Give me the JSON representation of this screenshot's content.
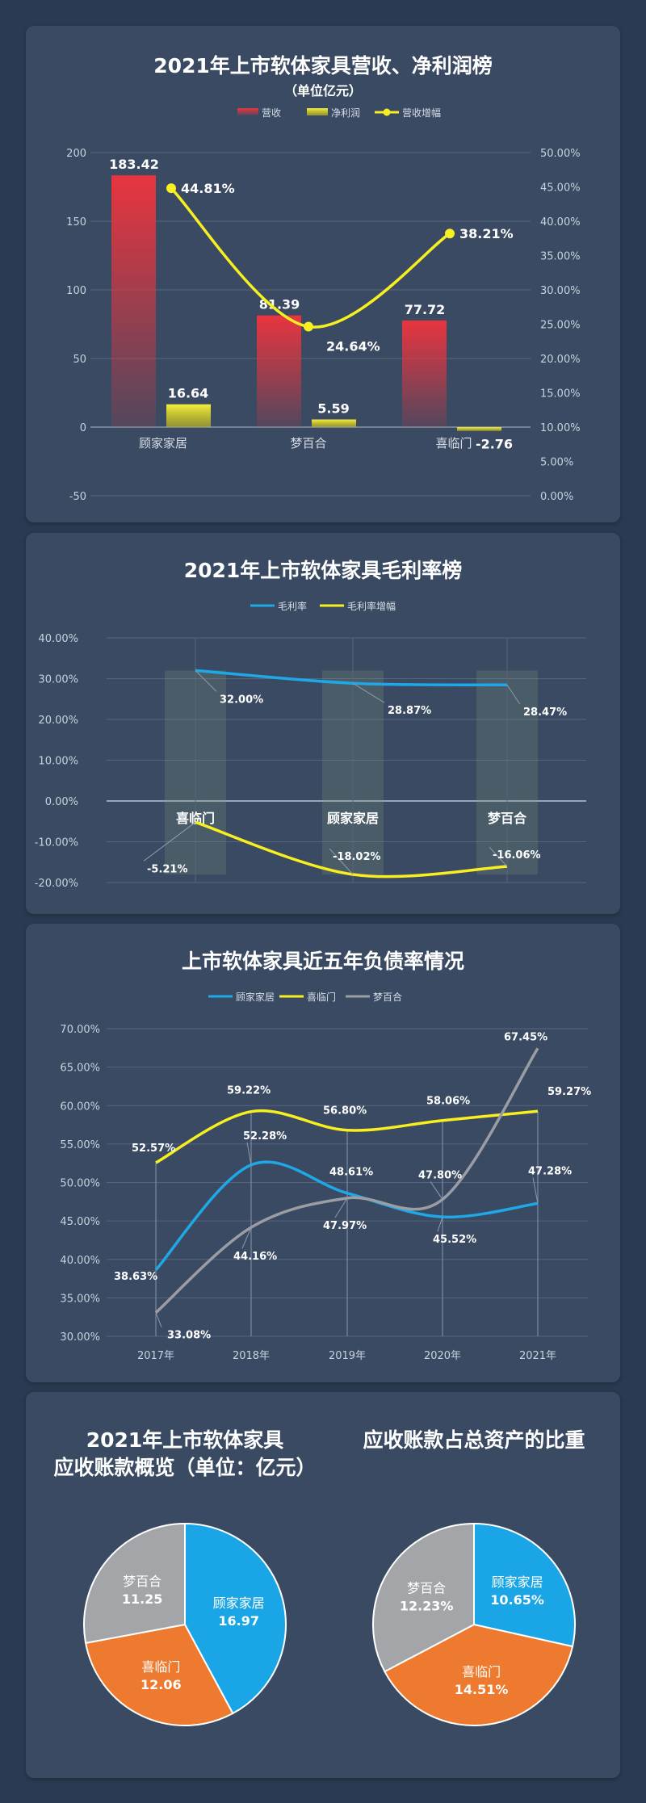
{
  "chart_data": [
    {
      "type": "bar",
      "title": "2021年上市软体家具营收、净利润榜",
      "subtitle": "（单位亿元）",
      "categories": [
        "顾家家居",
        "梦百合",
        "喜临门"
      ],
      "series": [
        {
          "name": "营收",
          "kind": "bar",
          "axis": "left",
          "values": [
            183.42,
            81.39,
            77.72
          ],
          "labels": [
            "183.42",
            "81.39",
            "77.72"
          ],
          "color": "#e8353f"
        },
        {
          "name": "净利润",
          "kind": "bar",
          "axis": "left",
          "values": [
            16.64,
            5.59,
            -2.76
          ],
          "labels": [
            "16.64",
            "5.59",
            "-2.76"
          ],
          "color": "#f3ee3a"
        },
        {
          "name": "营收增幅",
          "kind": "line",
          "axis": "right",
          "values": [
            44.81,
            24.64,
            38.21
          ],
          "labels": [
            "44.81%",
            "24.64%",
            "38.21%"
          ],
          "color": "#f7ef1f"
        }
      ],
      "ylim": [
        -50,
        200
      ],
      "yticks": [
        "200",
        "150",
        "100",
        "50",
        "0",
        "-50"
      ],
      "y2lim": [
        0,
        50
      ],
      "y2ticks": [
        "50.00%",
        "45.00%",
        "40.00%",
        "35.00%",
        "30.00%",
        "25.00%",
        "20.00%",
        "15.00%",
        "10.00%",
        "5.00%",
        "0.00%"
      ],
      "legend": "top"
    },
    {
      "type": "line",
      "title": "2021年上市软体家具毛利率榜",
      "categories": [
        "喜临门",
        "顾家家居",
        "梦百合"
      ],
      "series": [
        {
          "name": "毛利率",
          "values": [
            32.0,
            28.87,
            28.47
          ],
          "labels": [
            "32.00%",
            "28.87%",
            "28.47%"
          ],
          "color": "#1fa8e8"
        },
        {
          "name": "毛利率增幅",
          "values": [
            -5.21,
            -18.02,
            -16.06
          ],
          "labels": [
            "-5.21%",
            "-18.02%",
            "-16.06%"
          ],
          "color": "#f7ef1f"
        }
      ],
      "ylim": [
        -20,
        40
      ],
      "yticks": [
        "40.00%",
        "30.00%",
        "20.00%",
        "10.00%",
        "0.00%",
        "-10.00%",
        "-20.00%"
      ],
      "legend": "top"
    },
    {
      "type": "line",
      "title": "上市软体家具近五年负债率情况",
      "categories": [
        "2017年",
        "2018年",
        "2019年",
        "2020年",
        "2021年"
      ],
      "series": [
        {
          "name": "顾家家居",
          "values": [
            38.63,
            52.28,
            48.61,
            45.52,
            47.28
          ],
          "labels": [
            "38.63%",
            "52.28%",
            "48.61%",
            "45.52%",
            "47.28%"
          ],
          "color": "#1fa8e8"
        },
        {
          "name": "喜临门",
          "values": [
            52.57,
            59.22,
            56.8,
            58.06,
            59.27
          ],
          "labels": [
            "52.57%",
            "59.22%",
            "56.80%",
            "58.06%",
            "59.27%"
          ],
          "color": "#f7ef1f"
        },
        {
          "name": "梦百合",
          "values": [
            33.08,
            44.16,
            47.97,
            47.8,
            67.45
          ],
          "labels": [
            "33.08%",
            "44.16%",
            "47.97%",
            "47.80%",
            "67.45%"
          ],
          "color": "#9a9da3"
        }
      ],
      "ylim": [
        30,
        70
      ],
      "yticks": [
        "70.00%",
        "65.00%",
        "60.00%",
        "55.00%",
        "50.00%",
        "45.00%",
        "40.00%",
        "35.00%",
        "30.00%"
      ],
      "legend": "top"
    },
    {
      "type": "pie",
      "title": [
        "2021年上市软体家具",
        "应收账款概览（单位：亿元）"
      ],
      "slices": [
        {
          "name": "顾家家居",
          "value": 16.97,
          "label": "16.97",
          "color": "#1aa6e6"
        },
        {
          "name": "喜临门",
          "value": 12.06,
          "label": "12.06",
          "color": "#ed7a2e"
        },
        {
          "name": "梦百合",
          "value": 11.25,
          "label": "11.25",
          "color": "#a3a5a8"
        }
      ]
    },
    {
      "type": "pie",
      "title": [
        "应收账款占总资产的比重"
      ],
      "slices": [
        {
          "name": "顾家家居",
          "value": 10.65,
          "label": "10.65%",
          "color": "#1aa6e6"
        },
        {
          "name": "喜临门",
          "value": 14.51,
          "label": "14.51%",
          "color": "#ed7a2e"
        },
        {
          "name": "梦百合",
          "value": 12.23,
          "label": "12.23%",
          "color": "#a3a5a8"
        }
      ]
    }
  ]
}
